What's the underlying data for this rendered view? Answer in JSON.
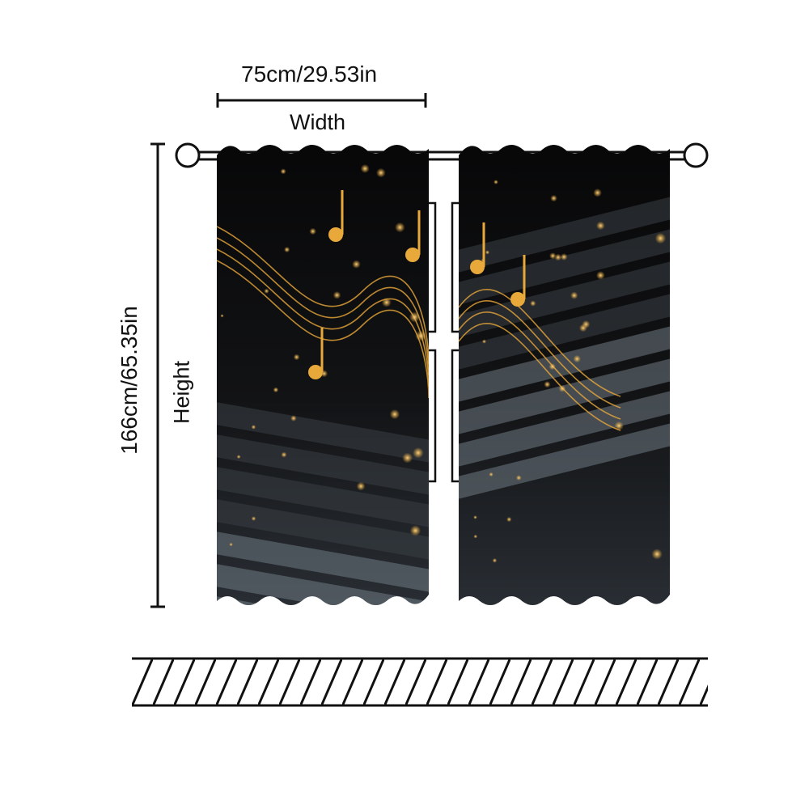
{
  "dimensions": {
    "width_value": "75cm/29.53in",
    "width_label": "Width",
    "height_value": "166cm/65.35in",
    "height_label": "Height"
  },
  "colors": {
    "line": "#111111",
    "gold": "#e8a83a",
    "panel_dark": "#0b0b0c",
    "keys": "#8a96a0"
  }
}
